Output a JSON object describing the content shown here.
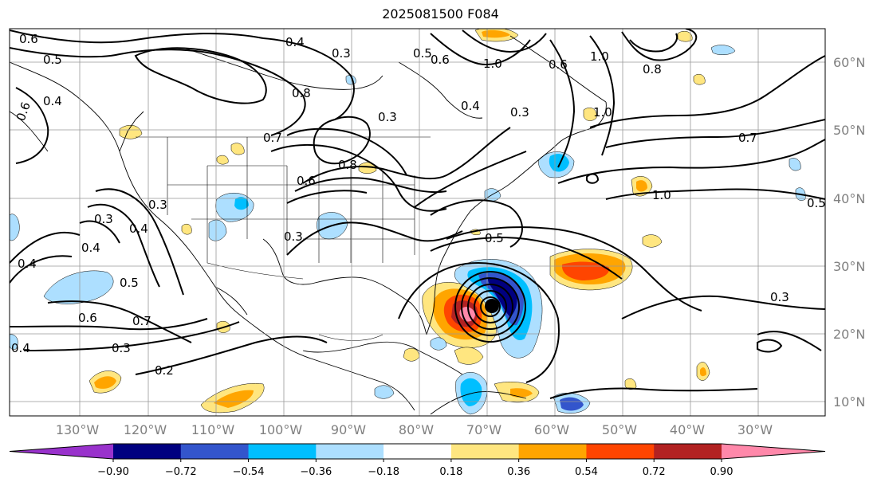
{
  "title": "2025081500 F084",
  "lat_labels": [
    "60°N",
    "50°N",
    "40°N",
    "30°N",
    "20°N",
    "10°N"
  ],
  "lon_labels": [
    "130°W",
    "120°W",
    "110°W",
    "100°W",
    "90°W",
    "80°W",
    "70°W",
    "60°W",
    "50°W",
    "40°W",
    "30°W"
  ],
  "colorbar": {
    "ticks": [
      "−0.90",
      "−0.72",
      "−0.54",
      "−0.36",
      "−0.18",
      "0.18",
      "0.36",
      "0.54",
      "0.72",
      "0.90"
    ],
    "colors": [
      "#9932CC",
      "#000080",
      "#3355CC",
      "#00BFFF",
      "#ADDFFF",
      "#FFFFFF",
      "#FFE680",
      "#FFA500",
      "#FF4500",
      "#B22222",
      "#FF88AA"
    ]
  },
  "contour_labels": [
    "0.6",
    "0.5",
    "0.6",
    "0.4",
    "0.4",
    "0.3",
    "0.5",
    "0.6",
    "0.8",
    "0.3",
    "1.0",
    "0.6",
    "0.3",
    "0.4",
    "1.0",
    "0.8",
    "0.7",
    "0.8",
    "0.6",
    "1.0",
    "0.7",
    "0.3",
    "0.3",
    "0.4",
    "0.3",
    "0.4",
    "0.4",
    "0.5",
    "0.6",
    "0.7",
    "0.3",
    "0.2",
    "0.4",
    "0.5",
    "1.0",
    "0.5",
    "0.3"
  ]
}
